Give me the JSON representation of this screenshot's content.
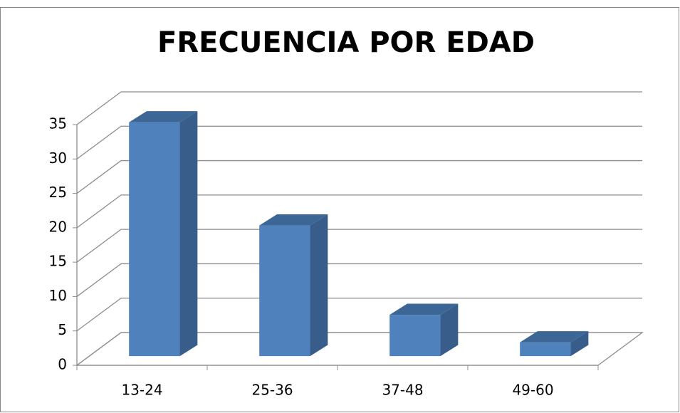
{
  "chart_data": {
    "type": "bar3d",
    "title": "FRECUENCIA POR EDAD",
    "categories": [
      "13-24",
      "25-36",
      "37-48",
      "49-60"
    ],
    "values": [
      34,
      19,
      6,
      2
    ],
    "color": "#4f81bd",
    "ylim": [
      0,
      35
    ],
    "yticks": [
      0,
      5,
      10,
      15,
      20,
      25,
      30,
      35
    ],
    "grid": true
  }
}
